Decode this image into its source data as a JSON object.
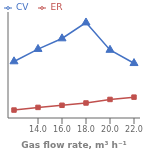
{
  "chart_data": {
    "type": "line",
    "xlabel": "Gas flow rate, m³ h⁻¹",
    "x": [
      12.0,
      14.0,
      16.0,
      18.0,
      20.0,
      22.0
    ],
    "series": [
      {
        "name": "CV",
        "color": "#4472C4",
        "marker": "triangle",
        "values": [
          3.2,
          3.9,
          4.5,
          5.4,
          3.85,
          3.1
        ]
      },
      {
        "name": "ER",
        "color": "#C0504D",
        "marker": "square",
        "values": [
          0.45,
          0.6,
          0.72,
          0.85,
          1.05,
          1.18
        ]
      }
    ],
    "xlim": [
      11.5,
      22.5
    ],
    "xticks": [
      {
        "value": 14.0,
        "label": "14.0"
      },
      {
        "value": 16.0,
        "label": "16.0"
      },
      {
        "value": 18.0,
        "label": "18.0"
      },
      {
        "value": 20.0,
        "label": "20.0"
      },
      {
        "value": 22.0,
        "label": "22.0"
      }
    ],
    "ylim": [
      0,
      6
    ],
    "tick_labels": "x",
    "legend": "upper left",
    "grid": false
  }
}
